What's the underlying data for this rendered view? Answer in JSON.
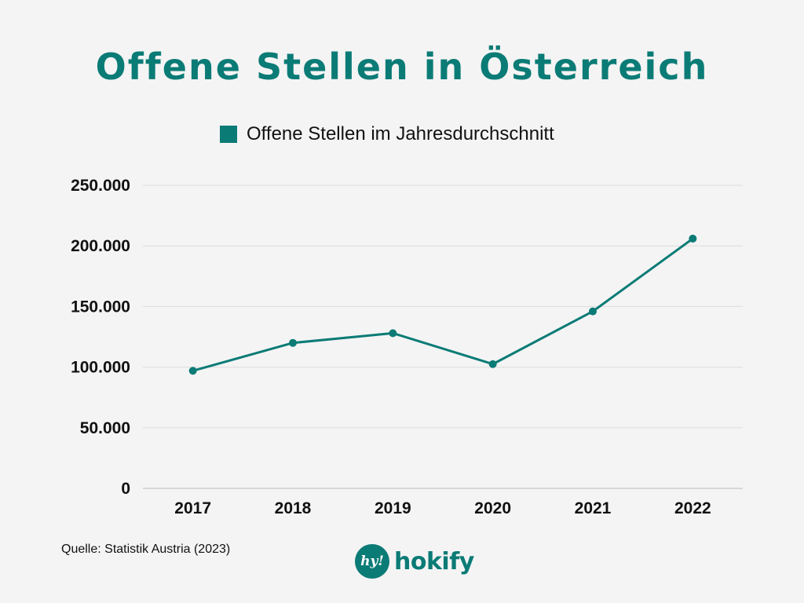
{
  "chart_data": {
    "type": "line",
    "title": "Offene Stellen in Österreich",
    "x": [
      "2017",
      "2018",
      "2019",
      "2020",
      "2021",
      "2022"
    ],
    "series": [
      {
        "name": "Offene Stellen im Jahresdurchschnitt",
        "values": [
          97000,
          120000,
          128000,
          102500,
          146000,
          206000
        ],
        "color": "#0b7b76"
      }
    ],
    "y_ticks": [
      0,
      50000,
      100000,
      150000,
      200000,
      250000
    ],
    "y_tick_labels": [
      "0",
      "50.000",
      "100.000",
      "150.000",
      "200.000",
      "250.000"
    ],
    "ylim": [
      0,
      250000
    ],
    "grid": true,
    "legend_position": "top"
  },
  "source": "Quelle: Statistik Austria (2023)",
  "brand": {
    "badge_text": "hy!",
    "name": "hokify"
  },
  "colors": {
    "accent": "#0b7b76",
    "grid": "#dcdcdc",
    "background": "#f4f4f4"
  }
}
